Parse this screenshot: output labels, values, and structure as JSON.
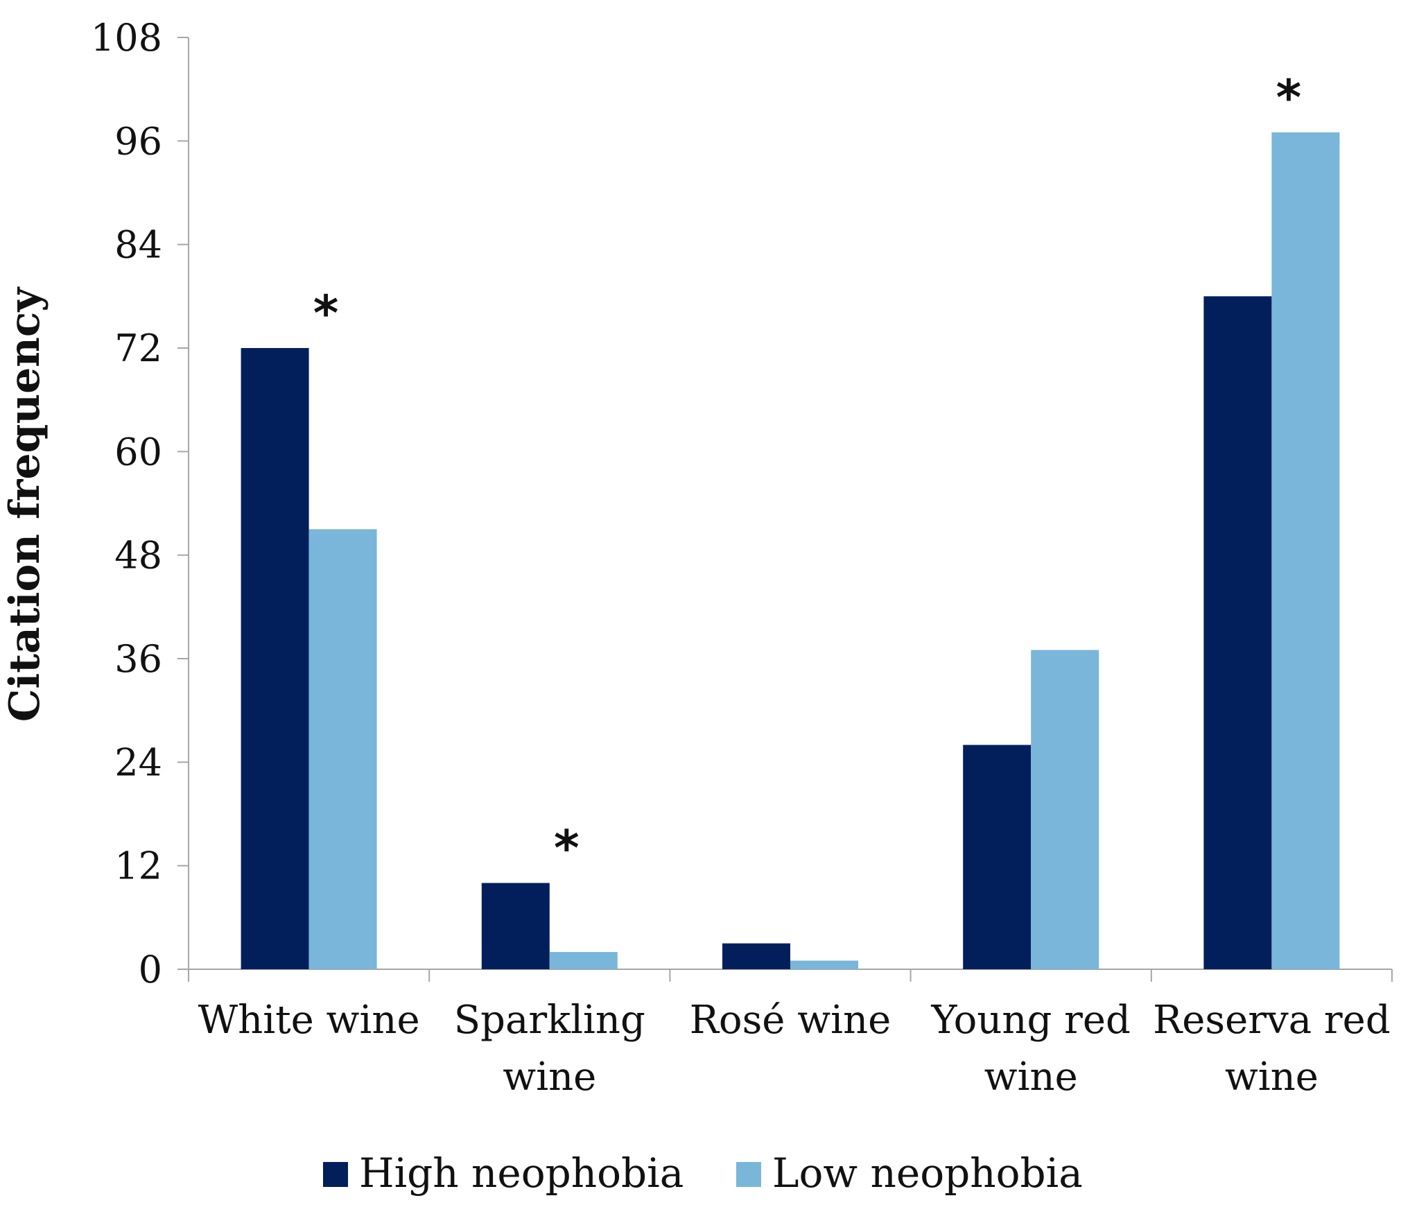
{
  "chart_data": {
    "type": "bar",
    "title": "",
    "xlabel": "",
    "ylabel": "Citation frequency",
    "ylim": [
      0,
      108
    ],
    "yticks": [
      0,
      12,
      24,
      36,
      48,
      60,
      72,
      84,
      96,
      108
    ],
    "grid": false,
    "legend_position": "bottom",
    "categories": [
      [
        "White wine"
      ],
      [
        "Sparkling",
        "wine"
      ],
      [
        "Rosé wine"
      ],
      [
        "Young red",
        "wine"
      ],
      [
        "Reserva red",
        "wine"
      ]
    ],
    "series": [
      {
        "name": "High neophobia",
        "color": "#021f5c",
        "values": [
          72,
          10,
          3,
          26,
          78
        ]
      },
      {
        "name": "Low neophobia",
        "color": "#79b6d9",
        "values": [
          51,
          2,
          1,
          37,
          97
        ]
      }
    ],
    "annotations": [
      {
        "category_index": 0,
        "text": "*"
      },
      {
        "category_index": 1,
        "text": "*"
      },
      {
        "category_index": 4,
        "text": "*"
      }
    ],
    "axis_color": "#a6a6a6"
  }
}
